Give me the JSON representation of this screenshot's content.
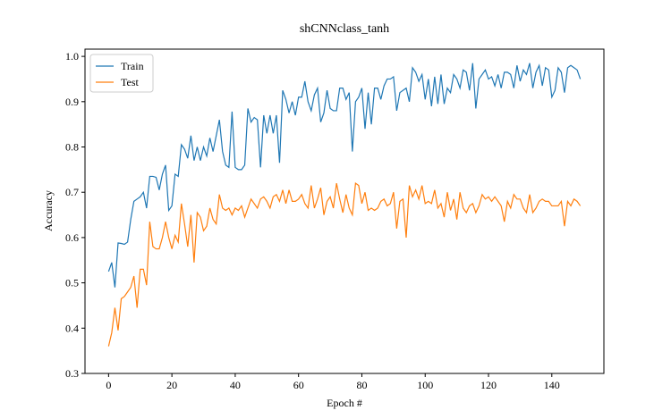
{
  "chart_data": {
    "type": "line",
    "title": "shCNNclass_tanh",
    "x_label": "Epoch #",
    "y_label": "Accuracy",
    "x": [
      0,
      1,
      2,
      3,
      4,
      5,
      6,
      7,
      8,
      9,
      10,
      11,
      12,
      13,
      14,
      15,
      16,
      17,
      18,
      19,
      20,
      21,
      22,
      23,
      24,
      25,
      26,
      27,
      28,
      29,
      30,
      31,
      32,
      33,
      34,
      35,
      36,
      37,
      38,
      39,
      40,
      41,
      42,
      43,
      44,
      45,
      46,
      47,
      48,
      49,
      50,
      51,
      52,
      53,
      54,
      55,
      56,
      57,
      58,
      59,
      60,
      61,
      62,
      63,
      64,
      65,
      66,
      67,
      68,
      69,
      70,
      71,
      72,
      73,
      74,
      75,
      76,
      77,
      78,
      79,
      80,
      81,
      82,
      83,
      84,
      85,
      86,
      87,
      88,
      89,
      90,
      91,
      92,
      93,
      94,
      95,
      96,
      97,
      98,
      99,
      100,
      101,
      102,
      103,
      104,
      105,
      106,
      107,
      108,
      109,
      110,
      111,
      112,
      113,
      114,
      115,
      116,
      117,
      118,
      119,
      120,
      121,
      122,
      123,
      124,
      125,
      126,
      127,
      128,
      129,
      130,
      131,
      132,
      133,
      134,
      135,
      136,
      137,
      138,
      139,
      140,
      141,
      142,
      143,
      144,
      145,
      146,
      147,
      148,
      149
    ],
    "series": [
      {
        "name": "Train",
        "color": "#1f77b4",
        "values": [
          0.525,
          0.545,
          0.49,
          0.588,
          0.587,
          0.585,
          0.59,
          0.64,
          0.68,
          0.685,
          0.69,
          0.7,
          0.665,
          0.735,
          0.735,
          0.733,
          0.705,
          0.74,
          0.76,
          0.66,
          0.67,
          0.74,
          0.735,
          0.805,
          0.795,
          0.775,
          0.825,
          0.77,
          0.8,
          0.77,
          0.8,
          0.78,
          0.82,
          0.79,
          0.825,
          0.86,
          0.79,
          0.76,
          0.755,
          0.878,
          0.755,
          0.75,
          0.75,
          0.76,
          0.885,
          0.855,
          0.865,
          0.86,
          0.755,
          0.87,
          0.83,
          0.87,
          0.83,
          0.87,
          0.765,
          0.925,
          0.905,
          0.875,
          0.9,
          0.87,
          0.91,
          0.91,
          0.945,
          0.9,
          0.88,
          0.915,
          0.93,
          0.855,
          0.875,
          0.925,
          0.885,
          0.88,
          0.88,
          0.93,
          0.93,
          0.905,
          0.92,
          0.79,
          0.9,
          0.91,
          0.93,
          0.84,
          0.92,
          0.85,
          0.93,
          0.93,
          0.905,
          0.935,
          0.95,
          0.95,
          0.955,
          0.88,
          0.92,
          0.925,
          0.93,
          0.9,
          0.975,
          0.965,
          0.945,
          0.96,
          0.905,
          0.95,
          0.89,
          0.955,
          0.895,
          0.96,
          0.895,
          0.93,
          0.92,
          0.96,
          0.95,
          0.93,
          0.97,
          0.965,
          0.925,
          0.985,
          0.885,
          0.95,
          0.96,
          0.97,
          0.95,
          0.955,
          0.935,
          0.96,
          0.93,
          0.965,
          0.965,
          0.96,
          0.93,
          0.98,
          0.945,
          0.97,
          0.96,
          0.985,
          0.93,
          0.965,
          0.98,
          0.935,
          0.975,
          0.97,
          0.91,
          0.925,
          0.975,
          0.965,
          0.92,
          0.975,
          0.98,
          0.975,
          0.97,
          0.95
        ]
      },
      {
        "name": "Test",
        "color": "#ff7f0e",
        "values": [
          0.36,
          0.39,
          0.445,
          0.395,
          0.465,
          0.47,
          0.48,
          0.49,
          0.515,
          0.445,
          0.53,
          0.53,
          0.495,
          0.635,
          0.58,
          0.575,
          0.575,
          0.6,
          0.635,
          0.6,
          0.575,
          0.605,
          0.59,
          0.675,
          0.63,
          0.58,
          0.65,
          0.545,
          0.655,
          0.645,
          0.615,
          0.625,
          0.665,
          0.64,
          0.63,
          0.695,
          0.665,
          0.66,
          0.665,
          0.65,
          0.665,
          0.66,
          0.67,
          0.645,
          0.665,
          0.685,
          0.675,
          0.665,
          0.685,
          0.69,
          0.68,
          0.665,
          0.69,
          0.695,
          0.68,
          0.705,
          0.675,
          0.705,
          0.68,
          0.68,
          0.685,
          0.695,
          0.675,
          0.665,
          0.715,
          0.665,
          0.685,
          0.71,
          0.65,
          0.68,
          0.69,
          0.665,
          0.72,
          0.685,
          0.655,
          0.695,
          0.665,
          0.65,
          0.72,
          0.715,
          0.675,
          0.7,
          0.66,
          0.665,
          0.66,
          0.665,
          0.68,
          0.685,
          0.67,
          0.675,
          0.7,
          0.62,
          0.68,
          0.685,
          0.6,
          0.715,
          0.69,
          0.705,
          0.685,
          0.715,
          0.675,
          0.68,
          0.675,
          0.705,
          0.665,
          0.675,
          0.645,
          0.7,
          0.66,
          0.685,
          0.64,
          0.7,
          0.665,
          0.655,
          0.67,
          0.675,
          0.655,
          0.67,
          0.695,
          0.685,
          0.69,
          0.68,
          0.69,
          0.68,
          0.67,
          0.635,
          0.68,
          0.665,
          0.695,
          0.685,
          0.685,
          0.665,
          0.655,
          0.695,
          0.655,
          0.665,
          0.68,
          0.685,
          0.68,
          0.68,
          0.67,
          0.67,
          0.67,
          0.68,
          0.625,
          0.68,
          0.67,
          0.685,
          0.68,
          0.67
        ]
      }
    ],
    "xlim": [
      -7.45,
      156.45
    ],
    "xticks": [
      0,
      20,
      40,
      60,
      80,
      100,
      120,
      140
    ],
    "ylim": [
      0.3,
      1.016
    ],
    "yticks": [
      0.3,
      0.4,
      0.5,
      0.6,
      0.7,
      0.8,
      0.9,
      {
        "value": 1,
        "label": "1.0"
      }
    ],
    "legend": "upper left"
  }
}
